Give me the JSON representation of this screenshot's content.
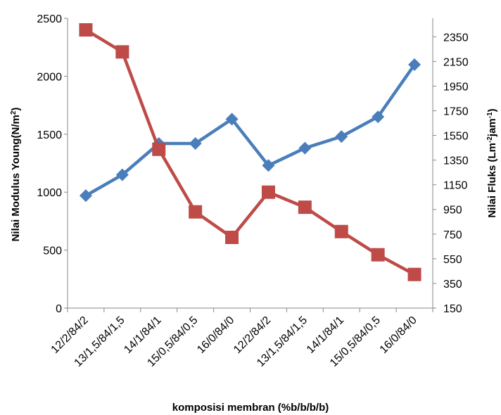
{
  "chart_data": {
    "type": "line",
    "title": "",
    "categories": [
      "12/2/84/2",
      "13/1,5/84/1,5",
      "14/1/84/1",
      "15/0,5/84/0,5",
      "16/0/84/0",
      "12/2/84/2",
      "13/1,5/84/1,5",
      "14/1/84/1",
      "15/0,5/84/0,5",
      "16/0/84/0"
    ],
    "xlabel": "komposisi membran (%b/b/b/b)",
    "ylabel_left_main": "Nilai  Modulus Young(N/m",
    "ylabel_left_sup": "2",
    "ylabel_left_end": ")",
    "ylabel_right_p1": "Nilai  Fluks (Lm",
    "ylabel_right_sup1": "-2",
    "ylabel_right_p2": "jam",
    "ylabel_right_sup2": "-1",
    "ylabel_right_p3": ")",
    "ylim_left": [
      0,
      2500
    ],
    "left_ticks": [
      "0",
      "500",
      "1000",
      "1500",
      "2000",
      "2500"
    ],
    "ylim_right": [
      150,
      2500
    ],
    "right_ticks": [
      "150",
      "350",
      "550",
      "750",
      "950",
      "1150",
      "1350",
      "1550",
      "1750",
      "1950",
      "2150",
      "2350"
    ],
    "legend": "none",
    "grid": false,
    "series": [
      {
        "axis": "left",
        "color": "#4a7ebb",
        "marker": "diamond",
        "values": [
          970,
          1150,
          1420,
          1420,
          1630,
          1230,
          1380,
          1480,
          1650,
          2100
        ]
      },
      {
        "axis": "left",
        "color": "#be4b48",
        "marker": "square",
        "values": [
          2400,
          2210,
          1370,
          830,
          610,
          1000,
          870,
          660,
          460,
          290
        ]
      }
    ]
  }
}
